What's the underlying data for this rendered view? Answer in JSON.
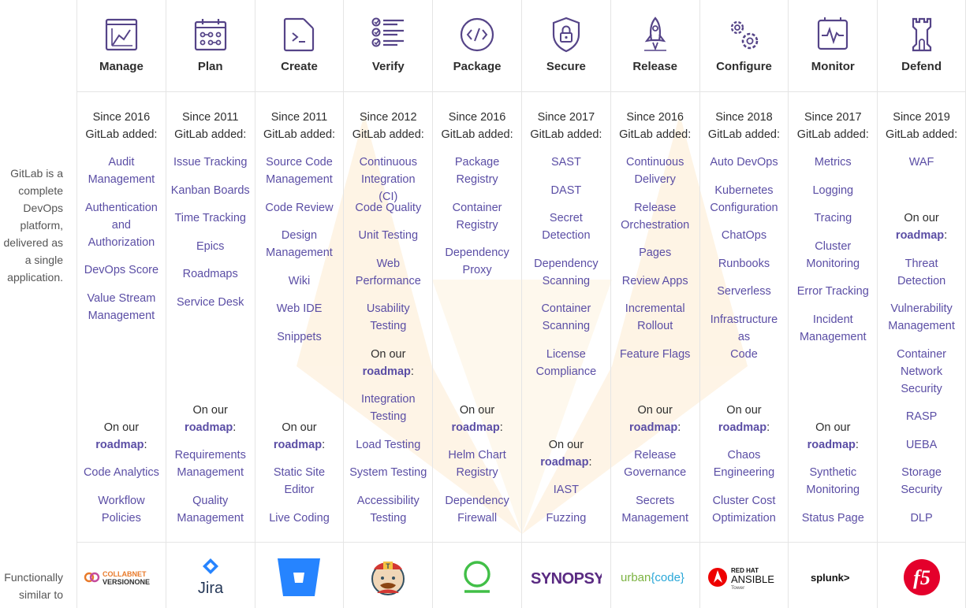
{
  "side_description": "GitLab is a complete DevOps platform, delivered as a single application.",
  "similar_label": "Functionally similar to",
  "since_line2": "GitLab added:",
  "road_line1": "On our",
  "road_word": "roadmap",
  "road_colon": ":",
  "colors": {
    "accent": "#5b4ea5",
    "icon": "#554488",
    "border": "#e5e5e5",
    "bg_logo": "#fdf0d8"
  },
  "stages": [
    {
      "name": "Manage",
      "icon": "manage-icon",
      "since": "Since 2016",
      "features": [
        "Audit Management",
        "Authentication and Authorization",
        "DevOps Score",
        "Value Stream Management"
      ],
      "roadmap": [
        "Code Analytics",
        "Workflow Policies"
      ],
      "logo": {
        "name": "collabnet-versionone-logo",
        "text1": "COLLABNET",
        "text2": "VERSIONONE"
      }
    },
    {
      "name": "Plan",
      "icon": "plan-icon",
      "since": "Since 2011",
      "features": [
        "Issue Tracking",
        "Kanban Boards",
        "Time Tracking",
        "Epics",
        "Roadmaps",
        "Service Desk"
      ],
      "roadmap": [
        "Requirements Management",
        "Quality Management"
      ],
      "logo": {
        "name": "jira-logo",
        "text1": "Jira"
      }
    },
    {
      "name": "Create",
      "icon": "create-icon",
      "since": "Since 2011",
      "features": [
        "Source Code Management",
        "Code Review",
        "Design Management",
        "Wiki",
        "Web IDE",
        "Snippets"
      ],
      "roadmap": [
        "Static Site Editor",
        "Live Coding"
      ],
      "logo": {
        "name": "bitbucket-logo"
      }
    },
    {
      "name": "Verify",
      "icon": "verify-icon",
      "since": "Since 2012",
      "features": [
        "Continuous Integration (CI)",
        "Code Quality",
        "Unit Testing",
        "Web Performance",
        "Usability Testing"
      ],
      "roadmap": [
        "Integration Testing",
        "Load Testing",
        "System Testing",
        "Accessibility Testing"
      ],
      "logo": {
        "name": "jenkins-logo"
      }
    },
    {
      "name": "Package",
      "icon": "package-icon",
      "since": "Since 2016",
      "features": [
        "Package Registry",
        "Container Registry",
        "Dependency Proxy"
      ],
      "roadmap": [
        "Helm Chart Registry",
        "Dependency Firewall"
      ],
      "logo": {
        "name": "artifactory-logo"
      }
    },
    {
      "name": "Secure",
      "icon": "secure-icon",
      "since": "Since 2017",
      "features": [
        "SAST",
        "DAST",
        "Secret Detection",
        "Dependency Scanning",
        "Container Scanning",
        "License Compliance"
      ],
      "roadmap": [
        "IAST",
        "Fuzzing"
      ],
      "logo": {
        "name": "synopsys-logo",
        "text1": "SYNOPSYS"
      }
    },
    {
      "name": "Release",
      "icon": "release-icon",
      "since": "Since 2016",
      "features": [
        "Continuous Delivery",
        "Release Orchestration",
        "Pages",
        "Review Apps",
        "Incremental Rollout",
        "Feature Flags"
      ],
      "roadmap": [
        "Release Governance",
        "Secrets Management"
      ],
      "logo": {
        "name": "urbancode-logo",
        "text1": "urban",
        "text2": "{code}"
      }
    },
    {
      "name": "Configure",
      "icon": "configure-icon",
      "since": "Since 2018",
      "features": [
        "Auto DevOps",
        "Kubernetes Configuration",
        "ChatOps",
        "Runbooks",
        "Serverless",
        "Infrastructure as Code"
      ],
      "roadmap": [
        "Chaos Engineering",
        "Cluster Cost Optimization"
      ],
      "logo": {
        "name": "ansible-tower-logo",
        "text1": "RED HAT",
        "text2": "ANSIBLE",
        "text3": "Tower"
      }
    },
    {
      "name": "Monitor",
      "icon": "monitor-icon",
      "since": "Since 2017",
      "features": [
        "Metrics",
        "Logging",
        "Tracing",
        "Cluster Monitoring",
        "Error Tracking",
        "Incident Management"
      ],
      "roadmap": [
        "Synthetic Monitoring",
        "Status Page"
      ],
      "logo": {
        "name": "splunk-logo",
        "text1": "splunk>"
      }
    },
    {
      "name": "Defend",
      "icon": "defend-icon",
      "since": "Since 2019",
      "features": [
        "WAF"
      ],
      "roadmap": [
        "Threat Detection",
        "Vulnerability Management",
        "Container Network Security",
        "RASP",
        "UEBA",
        "Storage Security",
        "DLP"
      ],
      "logo": {
        "name": "f5-logo",
        "text1": "f5"
      }
    }
  ]
}
